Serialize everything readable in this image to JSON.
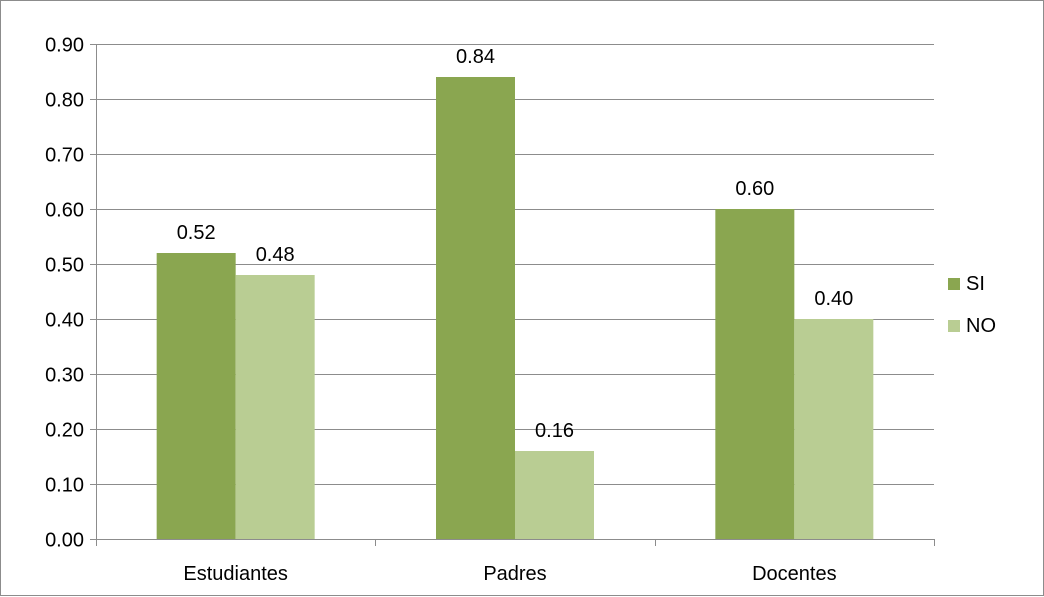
{
  "chart_data": {
    "type": "bar",
    "categories": [
      "Estudiantes",
      "Padres",
      "Docentes"
    ],
    "series": [
      {
        "name": "SI",
        "values": [
          0.52,
          0.84,
          0.6
        ],
        "labels": [
          "0.52",
          "0.84",
          "0.60"
        ],
        "color": "#8aa650"
      },
      {
        "name": "NO",
        "values": [
          0.48,
          0.16,
          0.4
        ],
        "labels": [
          "0.48",
          "0.16",
          "0.40"
        ],
        "color": "#b9cd93"
      }
    ],
    "yticks": [
      "0.00",
      "0.10",
      "0.20",
      "0.30",
      "0.40",
      "0.50",
      "0.60",
      "0.70",
      "0.80",
      "0.90"
    ],
    "ylim": [
      0,
      0.9
    ],
    "title": "",
    "xlabel": "",
    "ylabel": "",
    "grid": true,
    "legend": "right",
    "gridline_color": "#8c8c8c",
    "axis_color": "#8c8c8c",
    "border_color": "#8c8c8c"
  }
}
